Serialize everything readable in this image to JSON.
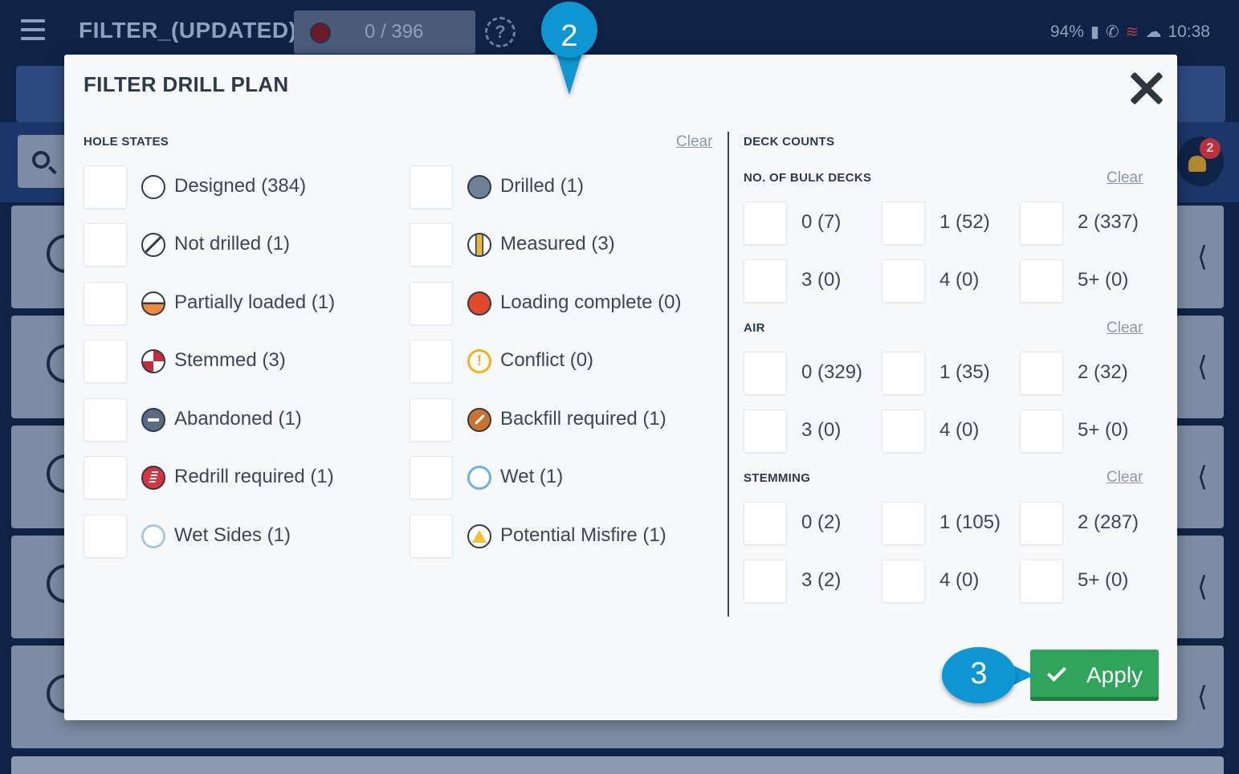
{
  "app": {
    "title": "FILTER_(UPDATED)",
    "counter": "0 / 396",
    "help": "?",
    "status": {
      "battery": "94%",
      "time": "10:38"
    },
    "notification_count": "2"
  },
  "modal": {
    "title": "FILTER DRILL PLAN",
    "hole_states": {
      "label": "HOLE STATES",
      "clear": "Clear",
      "left": [
        {
          "label": "Designed (384)",
          "icon": "designed"
        },
        {
          "label": "Not drilled (1)",
          "icon": "notdrilled"
        },
        {
          "label": "Partially loaded (1)",
          "icon": "partial"
        },
        {
          "label": "Stemmed (3)",
          "icon": "stemmed"
        },
        {
          "label": "Abandoned (1)",
          "icon": "abandoned"
        },
        {
          "label": "Redrill required (1)",
          "icon": "redrill"
        },
        {
          "label": "Wet Sides (1)",
          "icon": "wetsides"
        }
      ],
      "right": [
        {
          "label": "Drilled (1)",
          "icon": "drilled"
        },
        {
          "label": "Measured (3)",
          "icon": "measured"
        },
        {
          "label": "Loading complete (0)",
          "icon": "loaded"
        },
        {
          "label": "Conflict (0)",
          "icon": "conflict"
        },
        {
          "label": "Backfill required (1)",
          "icon": "backfill"
        },
        {
          "label": "Wet (1)",
          "icon": "wet"
        },
        {
          "label": "Potential Misfire (1)",
          "icon": "misfire"
        }
      ]
    },
    "deck_counts": {
      "label": "DECK COUNTS",
      "groups": [
        {
          "label": "NO. OF BULK DECKS",
          "clear": "Clear",
          "options": [
            "0 (7)",
            "1 (52)",
            "2 (337)",
            "3 (0)",
            "4 (0)",
            "5+ (0)"
          ]
        },
        {
          "label": "AIR",
          "clear": "Clear",
          "options": [
            "0 (329)",
            "1 (35)",
            "2 (32)",
            "3 (0)",
            "4 (0)",
            "5+ (0)"
          ]
        },
        {
          "label": "STEMMING",
          "clear": "Clear",
          "options": [
            "0 (2)",
            "1 (105)",
            "2 (287)",
            "3 (2)",
            "4 (0)",
            "5+ (0)"
          ]
        }
      ]
    },
    "apply_label": "Apply"
  },
  "callouts": {
    "step2": "2",
    "step3": "3"
  },
  "colors": {
    "accent": "#0e96d3",
    "apply": "#2fa45a",
    "header": "#0f2347"
  }
}
